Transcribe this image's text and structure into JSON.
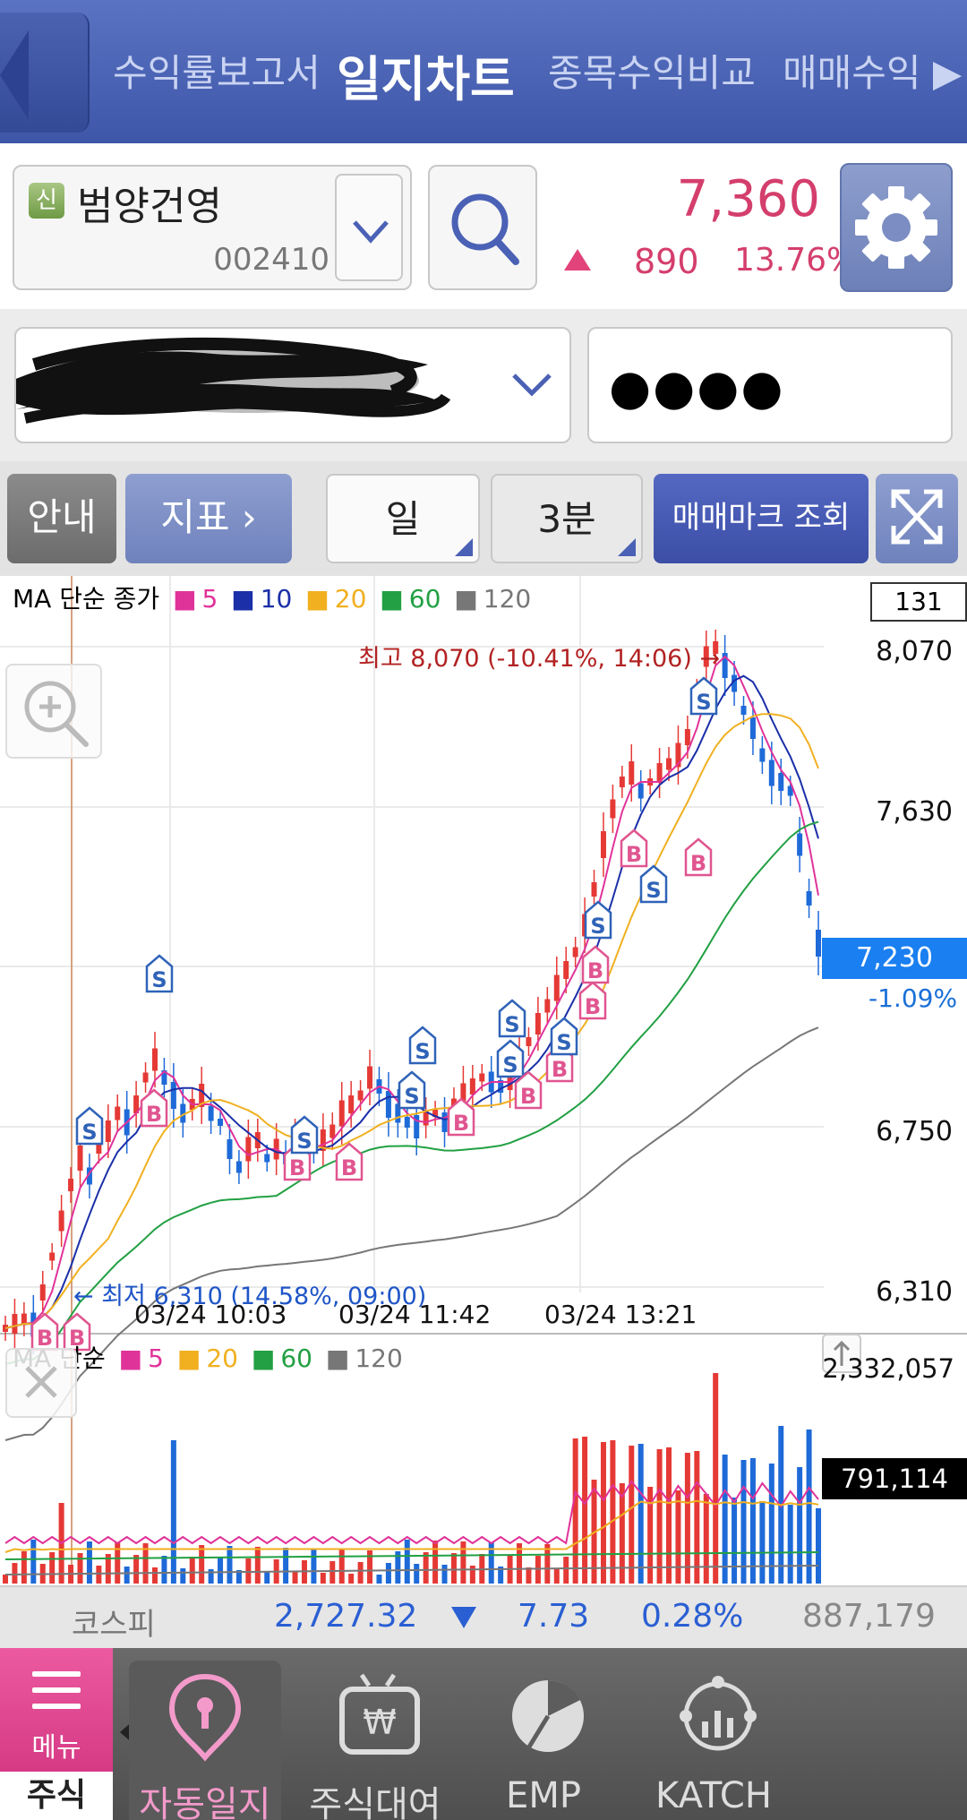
{
  "tabs": [
    {
      "label": "수익률보고서"
    },
    {
      "label": "일지차트"
    },
    {
      "label": "종목수익비교"
    },
    {
      "label": "매매수익 ▶"
    }
  ],
  "stock": {
    "badge": "신",
    "name": "범양건영",
    "code": "002410",
    "price": "7,360",
    "change": "890",
    "change_pct": "13.76%"
  },
  "account": {
    "password_mask": "●●●●"
  },
  "buttons": {
    "guide": "안내",
    "indicator": "지표 ›",
    "period": "일",
    "minute": "3분",
    "mark": "매매마크 조회"
  },
  "price_chart": {
    "legend_prefix": "MA 단순 종가",
    "ma": [
      {
        "label": "5",
        "color": "#e0339a"
      },
      {
        "label": "10",
        "color": "#1a2fa8"
      },
      {
        "label": "20",
        "color": "#f0b020"
      },
      {
        "label": "60",
        "color": "#22a043"
      },
      {
        "label": "120",
        "color": "#777777"
      }
    ],
    "count": "131",
    "price_ticks": [
      "8,070",
      "7,630",
      "6,750",
      "6,310"
    ],
    "current_price": "7,230",
    "current_change": "-1.09%",
    "high_label": "최고 8,070 (-10.41%, 14:06) →",
    "low_label": "← 최저 6,310 (14.58%, 09:00)",
    "time_ticks": [
      "03/24 10:03",
      "03/24 11:42",
      "03/24 13:21"
    ]
  },
  "volume_chart": {
    "legend_prefix": "MA 단순",
    "ma": [
      {
        "label": "5",
        "color": "#e0339a"
      },
      {
        "label": "20",
        "color": "#f0b020"
      },
      {
        "label": "60",
        "color": "#22a043"
      },
      {
        "label": "120",
        "color": "#777777"
      }
    ],
    "max": "2,332,057",
    "current": "791,114"
  },
  "index_bar": {
    "name": "코스피",
    "value": "2,727.32",
    "change": "7.73",
    "change_pct": "0.28%",
    "volume": "887,179"
  },
  "bottom_nav": {
    "menu": "메뉴",
    "stock": "주식",
    "items": [
      {
        "label": "자동일지",
        "icon": "location-pin-icon"
      },
      {
        "label": "주식대여",
        "icon": "tv-won-icon"
      },
      {
        "label": "EMP",
        "icon": "pie-chart-icon"
      },
      {
        "label": "KATCH",
        "icon": "network-chart-icon"
      }
    ]
  },
  "colors": {
    "accent_blue": "#3e56a8",
    "up_red": "#d43e6c",
    "down_blue": "#1a7ff0",
    "menu_pink": "#e04a92"
  }
}
